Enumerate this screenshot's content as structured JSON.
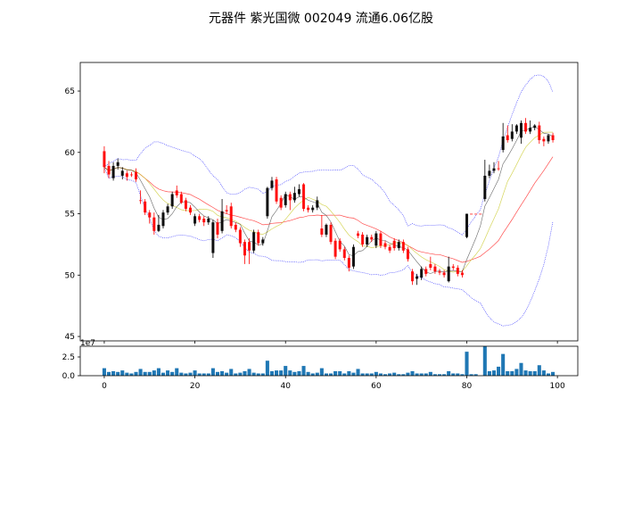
{
  "chart_data": {
    "type": "candlestick",
    "title": "元器件 紫光国微 002049 流通6.06亿股",
    "colors": {
      "up": "#000000",
      "down": "#ff0000",
      "ma5": "#000000",
      "ma10": "#cccc33",
      "ma20": "#ff0000",
      "boll": "#0000ff",
      "volume": "#1f77b4"
    },
    "overlays": [
      "MA5",
      "MA10",
      "MA20",
      "BOLL(20,2)"
    ],
    "price_axis": {
      "ylim": [
        44.64,
        67.33
      ],
      "ticks": [
        45,
        50,
        55,
        60,
        65
      ]
    },
    "x_axis": {
      "xlim": [
        -5.3,
        104.5
      ],
      "ticks": [
        0,
        20,
        40,
        60,
        80,
        100
      ]
    },
    "volume_axis": {
      "ylim": [
        0,
        3.93
      ],
      "ticks": [
        "0.0",
        "2.5"
      ],
      "offset_text": "1e7"
    },
    "ohlc": [
      [
        60.1,
        60.5,
        58.3,
        58.8
      ],
      [
        58.9,
        59.3,
        57.9,
        58.2
      ],
      [
        57.9,
        59.2,
        57.7,
        58.9
      ],
      [
        58.9,
        59.5,
        58.6,
        59.2
      ],
      [
        58.1,
        58.8,
        57.8,
        58.5
      ],
      [
        58.3,
        58.5,
        57.7,
        58.0
      ],
      [
        58.2,
        58.4,
        58.0,
        58.2
      ],
      [
        58.4,
        58.7,
        57.6,
        57.8
      ],
      [
        56.1,
        56.9,
        55.8,
        56.1
      ],
      [
        56.0,
        56.2,
        54.9,
        55.1
      ],
      [
        55.1,
        55.3,
        54.2,
        54.7
      ],
      [
        54.7,
        55.1,
        53.3,
        53.6
      ],
      [
        53.6,
        54.9,
        53.5,
        54.1
      ],
      [
        54.0,
        55.3,
        53.8,
        55.1
      ],
      [
        55.1,
        55.8,
        54.9,
        55.6
      ],
      [
        55.6,
        56.8,
        55.4,
        56.6
      ],
      [
        56.9,
        57.3,
        56.3,
        56.5
      ],
      [
        56.6,
        56.8,
        55.8,
        55.9
      ],
      [
        56.1,
        56.3,
        55.2,
        55.4
      ],
      [
        55.5,
        55.7,
        54.9,
        55.1
      ],
      [
        54.2,
        55.0,
        54.0,
        54.8
      ],
      [
        54.8,
        55.0,
        54.3,
        54.5
      ],
      [
        54.6,
        54.8,
        54.0,
        54.3
      ],
      [
        54.3,
        54.8,
        54.1,
        54.6
      ],
      [
        51.8,
        54.5,
        51.4,
        54.3
      ],
      [
        54.3,
        54.6,
        53.0,
        53.3
      ],
      [
        53.6,
        56.2,
        53.4,
        55.2
      ],
      [
        55.3,
        55.7,
        55.0,
        55.2
      ],
      [
        55.6,
        55.9,
        53.8,
        54.0
      ],
      [
        54.1,
        54.3,
        53.5,
        53.7
      ],
      [
        53.7,
        53.9,
        52.3,
        52.6
      ],
      [
        52.7,
        52.9,
        50.9,
        51.6
      ],
      [
        52.7,
        53.0,
        50.9,
        52.0
      ],
      [
        52.0,
        53.7,
        51.8,
        53.5
      ],
      [
        53.5,
        53.7,
        52.4,
        52.6
      ],
      [
        52.6,
        53.1,
        52.4,
        52.9
      ],
      [
        54.8,
        57.2,
        54.6,
        57.1
      ],
      [
        57.1,
        58.0,
        56.9,
        57.7
      ],
      [
        57.8,
        58.0,
        55.8,
        56.0
      ],
      [
        56.3,
        56.5,
        55.3,
        55.5
      ],
      [
        55.7,
        56.8,
        55.5,
        56.6
      ],
      [
        56.6,
        56.8,
        55.3,
        56.1
      ],
      [
        56.1,
        57.2,
        55.9,
        56.7
      ],
      [
        56.6,
        57.4,
        56.4,
        57.0
      ],
      [
        57.4,
        57.5,
        55.2,
        55.4
      ],
      [
        55.5,
        55.7,
        55.1,
        55.3
      ],
      [
        55.3,
        55.7,
        55.1,
        55.5
      ],
      [
        55.5,
        56.4,
        55.3,
        56.1
      ],
      [
        53.8,
        54.9,
        53.1,
        53.3
      ],
      [
        53.3,
        54.2,
        53.1,
        54.1
      ],
      [
        54.1,
        54.3,
        52.5,
        52.7
      ],
      [
        52.8,
        53.0,
        51.3,
        51.5
      ],
      [
        52.8,
        53.0,
        51.9,
        52.1
      ],
      [
        52.1,
        52.3,
        51.2,
        51.4
      ],
      [
        51.4,
        51.6,
        50.3,
        50.6
      ],
      [
        50.7,
        52.5,
        50.5,
        52.3
      ],
      [
        53.4,
        53.6,
        53.0,
        53.2
      ],
      [
        53.3,
        53.5,
        52.3,
        52.5
      ],
      [
        52.5,
        53.3,
        52.3,
        53.1
      ],
      [
        53.1,
        53.3,
        52.7,
        52.9
      ],
      [
        52.4,
        53.6,
        52.2,
        53.4
      ],
      [
        53.4,
        53.6,
        52.2,
        52.4
      ],
      [
        52.6,
        52.8,
        52.1,
        52.3
      ],
      [
        52.3,
        52.5,
        51.8,
        52.0
      ],
      [
        52.8,
        53.0,
        52.0,
        52.2
      ],
      [
        52.2,
        52.9,
        52.0,
        52.7
      ],
      [
        52.7,
        52.9,
        51.8,
        52.0
      ],
      [
        52.1,
        52.3,
        51.1,
        51.3
      ],
      [
        50.3,
        50.5,
        49.2,
        49.5
      ],
      [
        49.7,
        50.1,
        49.2,
        49.9
      ],
      [
        49.8,
        50.7,
        49.6,
        50.5
      ],
      [
        50.5,
        50.7,
        49.9,
        50.1
      ],
      [
        50.9,
        51.5,
        50.4,
        50.6
      ],
      [
        50.7,
        50.9,
        50.1,
        50.3
      ],
      [
        50.3,
        50.5,
        50.0,
        50.2
      ],
      [
        50.2,
        50.4,
        49.8,
        50.0
      ],
      [
        49.5,
        51.5,
        49.4,
        50.7
      ],
      [
        50.7,
        50.9,
        50.4,
        50.6
      ],
      [
        50.6,
        50.8,
        49.9,
        50.1
      ],
      [
        50.2,
        50.4,
        49.8,
        50.0
      ],
      [
        53.1,
        55.0,
        53.0,
        55.0
      ],
      [
        55.0,
        55.0,
        55.0,
        55.0
      ],
      [
        55.0,
        55.0,
        55.0,
        55.0
      ],
      [
        55.0,
        55.0,
        55.0,
        55.0
      ],
      [
        56.2,
        59.4,
        56.0,
        58.1
      ],
      [
        58.1,
        59.0,
        57.9,
        58.5
      ],
      [
        58.5,
        59.2,
        58.3,
        58.7
      ],
      [
        58.7,
        59.3,
        58.5,
        58.7
      ],
      [
        60.2,
        62.4,
        60.0,
        61.3
      ],
      [
        61.4,
        62.2,
        60.8,
        61.0
      ],
      [
        61.1,
        62.3,
        60.9,
        61.7
      ],
      [
        61.7,
        62.3,
        61.5,
        62.2
      ],
      [
        61.2,
        62.6,
        60.7,
        62.4
      ],
      [
        62.4,
        62.8,
        61.5,
        61.7
      ],
      [
        61.7,
        62.6,
        61.5,
        62.0
      ],
      [
        62.0,
        62.3,
        61.8,
        62.2
      ],
      [
        62.2,
        62.5,
        60.7,
        61.0
      ],
      [
        61.1,
        61.3,
        60.5,
        60.9
      ],
      [
        60.9,
        61.5,
        60.7,
        61.4
      ],
      [
        61.4,
        61.6,
        60.8,
        61.0
      ]
    ],
    "volume_1e7": [
      1.0,
      0.5,
      0.6,
      0.5,
      0.7,
      0.4,
      0.3,
      0.5,
      0.9,
      0.5,
      0.5,
      0.7,
      1.0,
      0.4,
      0.7,
      0.5,
      1.0,
      0.4,
      0.3,
      0.4,
      0.7,
      0.3,
      0.3,
      0.3,
      1.0,
      0.5,
      0.6,
      0.4,
      0.9,
      0.3,
      0.4,
      0.6,
      0.9,
      0.4,
      0.3,
      0.3,
      2.0,
      0.6,
      0.7,
      0.7,
      1.3,
      0.7,
      0.5,
      0.6,
      1.3,
      0.5,
      0.3,
      0.4,
      1.0,
      0.3,
      0.3,
      0.6,
      0.6,
      0.3,
      0.6,
      0.4,
      0.9,
      0.3,
      0.3,
      0.3,
      0.5,
      0.3,
      0.2,
      0.3,
      0.4,
      0.2,
      0.2,
      0.4,
      0.6,
      0.3,
      0.3,
      0.3,
      0.5,
      0.2,
      0.2,
      0.2,
      0.6,
      0.3,
      0.3,
      0.2,
      3.2,
      0.2,
      0.2,
      0,
      4.2,
      0.6,
      0.7,
      1.2,
      2.9,
      0.6,
      0.6,
      0.9,
      1.7,
      0.7,
      0.6,
      0.6,
      1.4,
      0.7,
      0.3,
      0.5
    ]
  }
}
